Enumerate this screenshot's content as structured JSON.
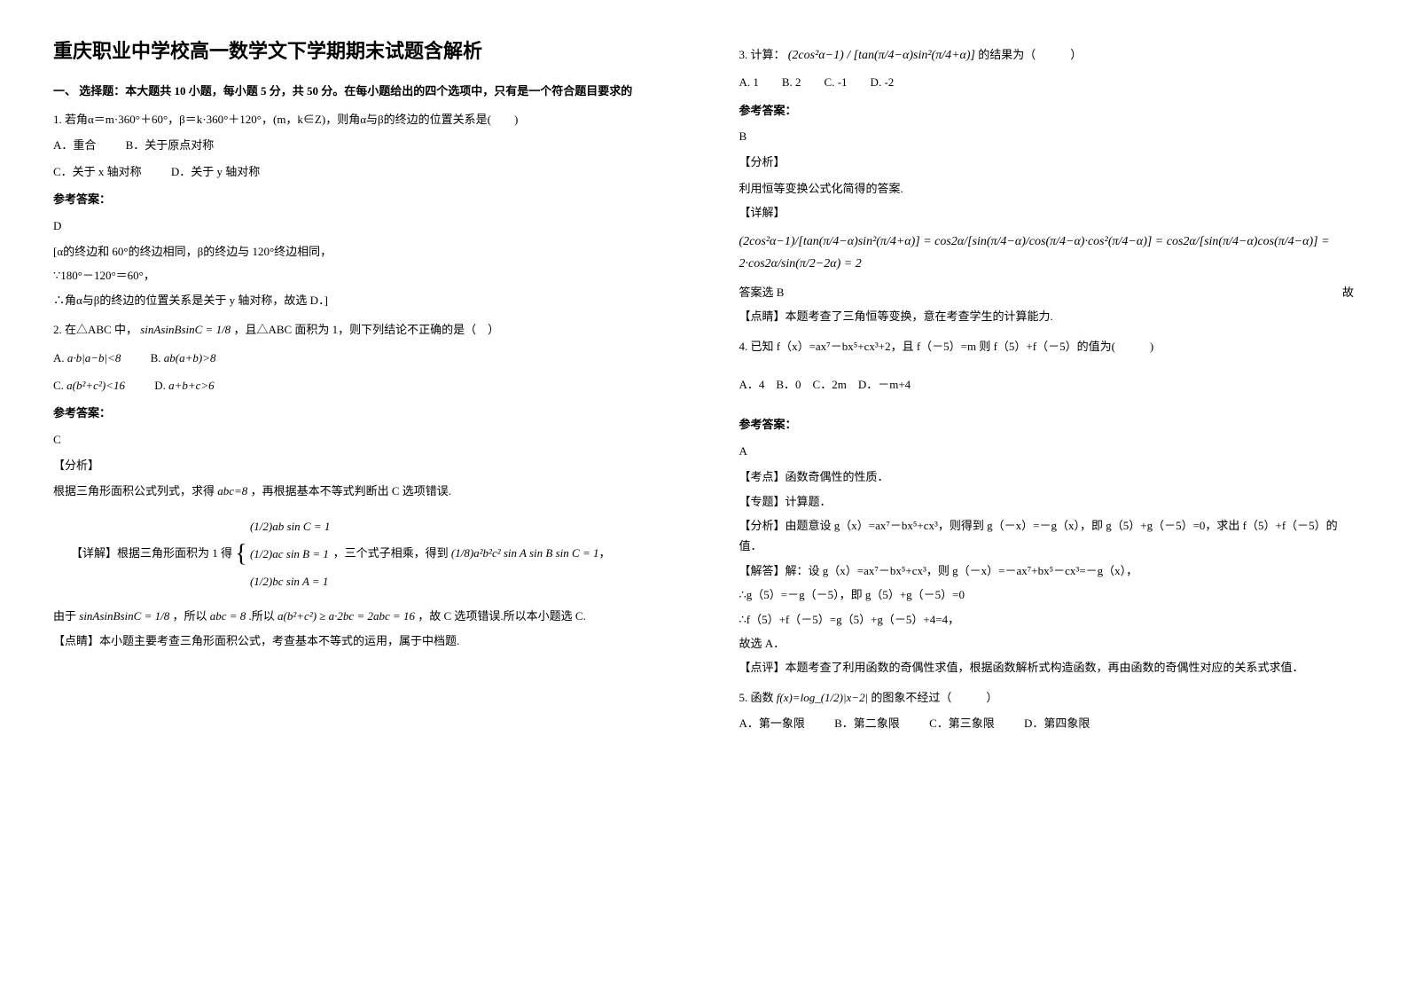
{
  "title": "重庆职业中学校高一数学文下学期期末试题含解析",
  "section1_header": "一、 选择题：本大题共 10 小题，每小题 5 分，共 50 分。在每小题给出的四个选项中，只有是一个符合题目要求的",
  "q1": {
    "stem": "1. 若角α＝m·360°＋60°，β＝k·360°＋120°，(m，k∈Z)，则角α与β的终边的位置关系是(　　)",
    "optA": "A．重合",
    "optB": "B．关于原点对称",
    "optC": "C．关于 x 轴对称",
    "optD": "D．关于 y 轴对称",
    "answer_label": "参考答案：",
    "answer": "D",
    "explain_line1": "[α的终边和 60°的终边相同，β的终边与 120°终边相同，",
    "explain_line2": "∵180°－120°＝60°，",
    "explain_line3": "∴角α与β的终边的位置关系是关于 y 轴对称，故选 D．]"
  },
  "q2": {
    "stem_prefix": "2. 在△ABC 中，",
    "stem_formula": "sinAsinBsinC = 1/8",
    "stem_suffix": "，且△ABC 面积为 1，则下列结论不正确的是（　）",
    "optA_prefix": "A.",
    "optA_formula": "a·b|a−b|<8",
    "optB_prefix": "B.",
    "optB_formula": "ab(a+b)>8",
    "optC_prefix": "C.",
    "optC_formula": "a(b²+c²)<16",
    "optD_prefix": "D.",
    "optD_formula": "a+b+c>6",
    "answer_label": "参考答案：",
    "answer": "C",
    "analysis_label": "【分析】",
    "analysis_line1_prefix": "根据三角形面积公式列式，求得",
    "analysis_line1_formula": "abc=8",
    "analysis_line1_suffix": "，再根据基本不等式判断出 C 选项错误.",
    "detail_label": "【详解】根据三角形面积为 1 得",
    "detail_formula_l1": "(1/2)ab sin C = 1",
    "detail_formula_l2": "(1/2)ac sin B = 1",
    "detail_formula_l3": "(1/2)bc sin A = 1",
    "detail_mid": "，三个式子相乘，得到",
    "detail_formula_r": "(1/8)a²b²c² sin A sin B sin C = 1",
    "detail_line2_prefix": "由于",
    "detail_line2_f1": "sinAsinBsinC = 1/8",
    "detail_line2_mid1": "，所以",
    "detail_line2_f2": "abc = 8",
    "detail_line2_mid2": ".所以",
    "detail_line2_f3": "a(b²+c²) ≥ a·2bc = 2abc = 16",
    "detail_line2_suffix": "，故 C 选项错误.所以本小题选 C.",
    "comment_label": "【点睛】本小题主要考查三角形面积公式，考查基本不等式的运用，属于中档题."
  },
  "q3": {
    "stem_prefix": "3. 计算：",
    "stem_formula": "(2cos²α−1) / [tan(π/4−α)sin²(π/4+α)]",
    "stem_suffix": " 的结果为（　　　）",
    "options": "A. 1　　B. 2　　C. -1　　D. -2",
    "answer_label": "参考答案：",
    "answer": "B",
    "analysis_label": "【分析】",
    "analysis_text": "利用恒等变换公式化简得的答案.",
    "detail_label": "【详解】",
    "detail_formula": "(2cos²α−1)/[tan(π/4−α)sin²(π/4+α)] = cos2α/[sin(π/4−α)/cos(π/4−α)·cos²(π/4−α)] = cos2α/[sin(π/4−α)cos(π/4−α)] = 2·cos2α/sin(π/2−2α) = 2",
    "detail_suffix": "故",
    "conclusion": "答案选 B",
    "comment_label": "【点睛】本题考查了三角恒等变换，意在考查学生的计算能力."
  },
  "q4": {
    "stem": "4. 已知 f（x）=ax⁷－bx⁵+cx³+2，且 f（－5）=m 则 f（5）+f（－5）的值为(　　　)",
    "options": "A．4　B．0　C．2m　D．－m+4",
    "answer_label": "参考答案：",
    "answer": "A",
    "kaodian_label": "【考点】函数奇偶性的性质．",
    "zhuanti_label": "【专题】计算题．",
    "analysis_label": "【分析】由题意设 g（x）=ax⁷－bx⁵+cx³，则得到 g（－x）=－g（x），即 g（5）+g（－5）=0，求出 f（5）+f（－5）的值．",
    "solve_label": "【解答】解：设 g（x）=ax⁷－bx⁵+cx³，则 g（－x）=－ax⁷+bx⁵－cx³=－g（x），",
    "solve_line2": "∴g（5）=－g（－5），即 g（5）+g（－5）=0",
    "solve_line3": "∴f（5）+f（－5）=g（5）+g（－5）+4=4，",
    "solve_line4": "故选 A．",
    "comment_label": "【点评】本题考查了利用函数的奇偶性求值，根据函数解析式构造函数，再由函数的奇偶性对应的关系式求值．"
  },
  "q5": {
    "stem_prefix": "5. 函数",
    "stem_formula": "f(x)=log_(1/2)|x−2|",
    "stem_suffix": "的图象不经过（　　　）",
    "optA": "A．第一象限",
    "optB": "B．第二象限",
    "optC": "C．第三象限",
    "optD": "D．第四象限"
  },
  "labels": {
    "answer_ref": "参考答案："
  },
  "colors": {
    "text": "#000000",
    "background": "#ffffff"
  }
}
